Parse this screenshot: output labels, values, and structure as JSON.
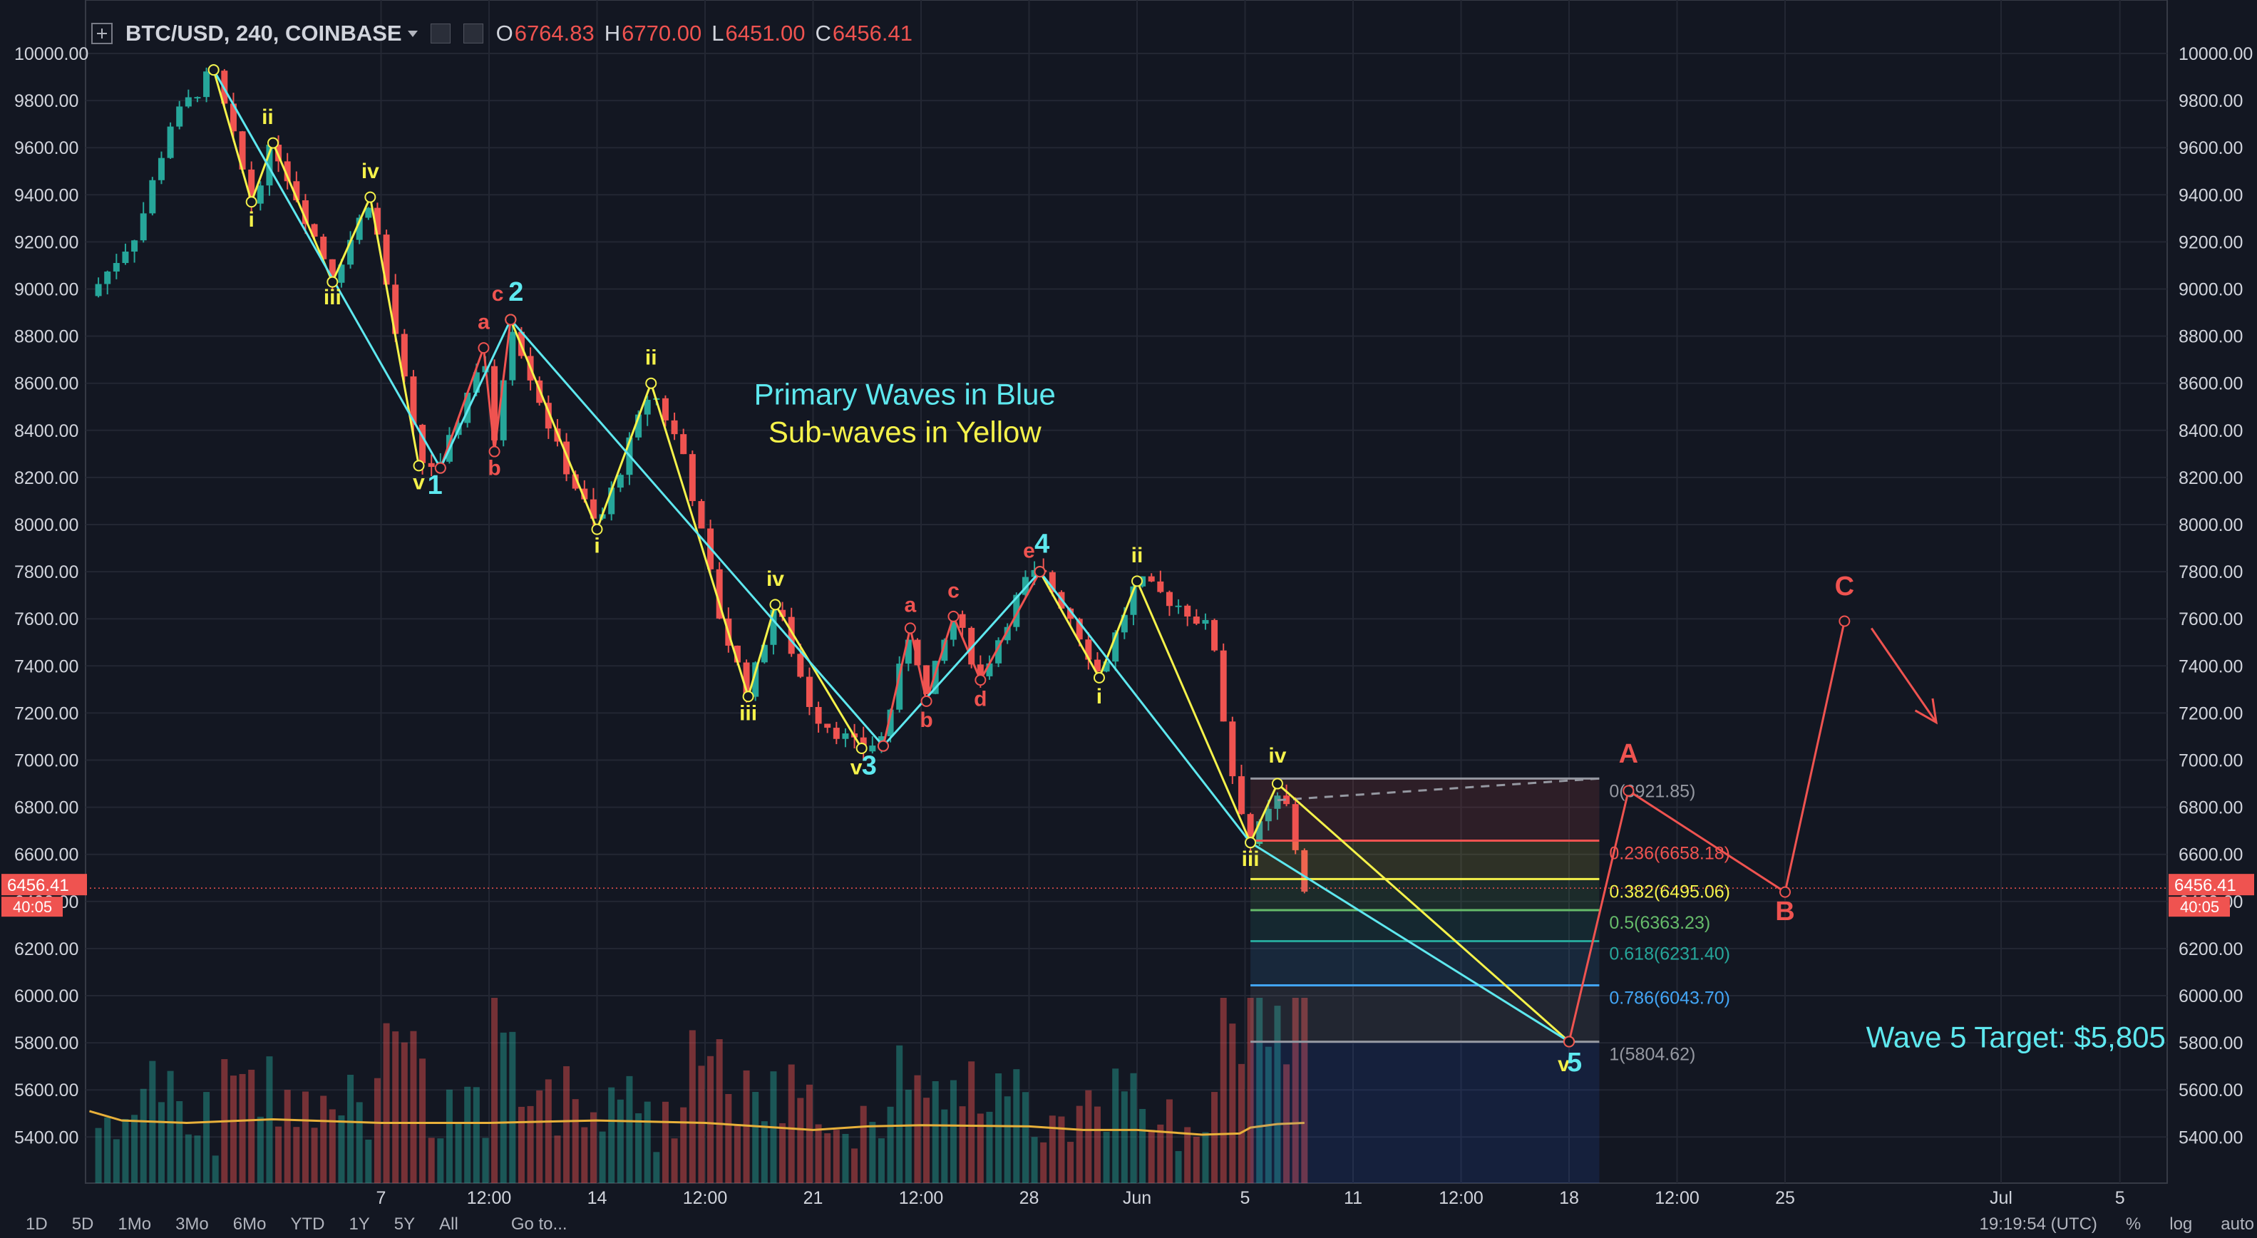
{
  "header": {
    "symbol": "BTC/USD, 240, COINBASE",
    "ohlc": [
      {
        "k": "O",
        "v": "6764.83"
      },
      {
        "k": "H",
        "v": "6770.00"
      },
      {
        "k": "L",
        "v": "6451.00"
      },
      {
        "k": "C",
        "v": "6456.41"
      }
    ]
  },
  "bottom": {
    "ranges": [
      "1D",
      "5D",
      "1Mo",
      "3Mo",
      "6Mo",
      "YTD",
      "1Y",
      "5Y",
      "All"
    ],
    "goto": "Go to...",
    "clock": "19:19:54 (UTC)",
    "percent": "%",
    "log": "log",
    "auto": "auto"
  },
  "colors": {
    "background": "#131722",
    "up": "#26a69a",
    "down": "#ef5350",
    "primary_wave": "#5ee8ef",
    "sub_wave": "#f5f24a",
    "corrective": "#ef5350",
    "ma": "#e8b03a"
  },
  "chart_data": {
    "type": "candlestick",
    "title": "BTC/USD, 240, COINBASE",
    "ylim": [
      5200,
      10200
    ],
    "y_ticks": [
      "10000.00",
      "9800.00",
      "9600.00",
      "9400.00",
      "9200.00",
      "9000.00",
      "8800.00",
      "8600.00",
      "8400.00",
      "8200.00",
      "8000.00",
      "7800.00",
      "7600.00",
      "7400.00",
      "7200.00",
      "7000.00",
      "6800.00",
      "6600.00",
      "6400.00",
      "6200.00",
      "6000.00",
      "5800.00",
      "5600.00",
      "5400.00"
    ],
    "x_ticks": [
      {
        "label": "7",
        "t": 1.0
      },
      {
        "label": "12:00",
        "t": 2.0
      },
      {
        "label": "14",
        "t": 3.0
      },
      {
        "label": "12:00",
        "t": 4.0
      },
      {
        "label": "21",
        "t": 5.0
      },
      {
        "label": "12:00",
        "t": 6.0
      },
      {
        "label": "28",
        "t": 7.0
      },
      {
        "label": "Jun",
        "t": 8.0
      },
      {
        "label": "5",
        "t": 9.0
      },
      {
        "label": "11",
        "t": 10.0
      },
      {
        "label": "12:00",
        "t": 11.0
      },
      {
        "label": "18",
        "t": 12.0
      },
      {
        "label": "12:00",
        "t": 13.0
      },
      {
        "label": "25",
        "t": 14.0
      },
      {
        "label": "Jul",
        "t": 16.0
      },
      {
        "label": "5",
        "t": 17.1
      }
    ],
    "last_price": "6456.41",
    "last_price_value": 6456.41,
    "countdown": "40:05",
    "price_path": [
      [
        -1.7,
        8970
      ],
      [
        -1.25,
        9250
      ],
      [
        -0.95,
        9700
      ],
      [
        -0.55,
        9930
      ],
      [
        -0.2,
        9370
      ],
      [
        0.0,
        9620
      ],
      [
        0.55,
        9050
      ],
      [
        0.9,
        9390
      ],
      [
        1.35,
        8270
      ],
      [
        1.55,
        8240
      ],
      [
        1.95,
        8750
      ],
      [
        2.05,
        8330
      ],
      [
        2.2,
        8870
      ],
      [
        2.65,
        8300
      ],
      [
        3.0,
        7980
      ],
      [
        3.5,
        8580
      ],
      [
        3.8,
        8300
      ],
      [
        4.15,
        7580
      ],
      [
        4.4,
        7280
      ],
      [
        4.65,
        7670
      ],
      [
        5.0,
        7200
      ],
      [
        5.45,
        7040
      ],
      [
        5.65,
        7100
      ],
      [
        5.9,
        7560
      ],
      [
        6.05,
        7270
      ],
      [
        6.3,
        7620
      ],
      [
        6.55,
        7350
      ],
      [
        6.95,
        7750
      ],
      [
        7.1,
        7800
      ],
      [
        7.4,
        7600
      ],
      [
        7.65,
        7360
      ],
      [
        8.0,
        7760
      ],
      [
        8.45,
        7640
      ],
      [
        8.7,
        7540
      ],
      [
        8.85,
        7000
      ],
      [
        9.05,
        6650
      ],
      [
        9.35,
        6870
      ],
      [
        9.55,
        6456
      ]
    ],
    "waves": {
      "primary": [
        [
          -0.55,
          9930
        ],
        [
          1.55,
          8240
        ],
        [
          2.2,
          8870
        ],
        [
          5.65,
          7060
        ],
        [
          7.1,
          7800
        ],
        [
          9.05,
          6650
        ],
        [
          12.0,
          5805
        ]
      ],
      "sub": [
        [
          [
            -0.55,
            9930
          ],
          [
            -0.2,
            9370
          ],
          [
            0.0,
            9620
          ],
          [
            0.55,
            9030
          ],
          [
            0.9,
            9390
          ],
          [
            1.35,
            8250
          ]
        ],
        [
          [
            2.2,
            8870
          ],
          [
            3.0,
            7980
          ],
          [
            3.5,
            8600
          ],
          [
            4.4,
            7270
          ],
          [
            4.65,
            7660
          ],
          [
            5.45,
            7050
          ]
        ],
        [
          [
            7.1,
            7800
          ],
          [
            7.65,
            7350
          ],
          [
            8.0,
            7760
          ],
          [
            9.05,
            6650
          ],
          [
            9.3,
            6900
          ],
          [
            12.0,
            5805
          ]
        ]
      ],
      "corrective": [
        [
          [
            1.55,
            8240
          ],
          [
            1.95,
            8750
          ],
          [
            2.05,
            8310
          ],
          [
            2.2,
            8870
          ]
        ],
        [
          [
            5.65,
            7060
          ],
          [
            5.9,
            7560
          ],
          [
            6.05,
            7250
          ],
          [
            6.3,
            7610
          ],
          [
            6.55,
            7340
          ],
          [
            7.1,
            7800
          ]
        ]
      ],
      "projection": [
        [
          12.0,
          5805
        ],
        [
          12.55,
          6870
        ],
        [
          14.0,
          6440
        ],
        [
          14.55,
          7590
        ]
      ],
      "projection_arrow": [
        [
          14.8,
          7560
        ],
        [
          15.4,
          7160
        ]
      ]
    },
    "wave_labels": [
      {
        "text": "ii",
        "t": -0.05,
        "p": 9700,
        "color": "sub"
      },
      {
        "text": "i",
        "t": -0.2,
        "p": 9265,
        "color": "sub"
      },
      {
        "text": "iv",
        "t": 0.9,
        "p": 9470,
        "color": "sub"
      },
      {
        "text": "iii",
        "t": 0.55,
        "p": 8935,
        "color": "sub"
      },
      {
        "text": "v",
        "t": 1.35,
        "p": 8150,
        "color": "sub"
      },
      {
        "text": "1",
        "t": 1.5,
        "p": 8130,
        "color": "primary"
      },
      {
        "text": "a",
        "t": 1.95,
        "p": 8830,
        "color": "corrective"
      },
      {
        "text": "b",
        "t": 2.05,
        "p": 8210,
        "color": "corrective"
      },
      {
        "text": "c",
        "t": 2.08,
        "p": 8950,
        "color": "corrective"
      },
      {
        "text": "2",
        "t": 2.25,
        "p": 8950,
        "color": "primary"
      },
      {
        "text": "i",
        "t": 3.0,
        "p": 7880,
        "color": "sub"
      },
      {
        "text": "ii",
        "t": 3.5,
        "p": 8680,
        "color": "sub"
      },
      {
        "text": "iii",
        "t": 4.4,
        "p": 7170,
        "color": "sub"
      },
      {
        "text": "iv",
        "t": 4.65,
        "p": 7740,
        "color": "sub"
      },
      {
        "text": "v",
        "t": 5.4,
        "p": 6940,
        "color": "sub"
      },
      {
        "text": "3",
        "t": 5.52,
        "p": 6940,
        "color": "primary"
      },
      {
        "text": "a",
        "t": 5.9,
        "p": 7630,
        "color": "corrective"
      },
      {
        "text": "b",
        "t": 6.05,
        "p": 7140,
        "color": "corrective"
      },
      {
        "text": "c",
        "t": 6.3,
        "p": 7690,
        "color": "corrective"
      },
      {
        "text": "d",
        "t": 6.55,
        "p": 7230,
        "color": "corrective"
      },
      {
        "text": "e",
        "t": 7.0,
        "p": 7860,
        "color": "corrective"
      },
      {
        "text": "4",
        "t": 7.12,
        "p": 7880,
        "color": "primary"
      },
      {
        "text": "i",
        "t": 7.65,
        "p": 7240,
        "color": "sub"
      },
      {
        "text": "ii",
        "t": 8.0,
        "p": 7840,
        "color": "sub"
      },
      {
        "text": "iii",
        "t": 9.05,
        "p": 6550,
        "color": "sub"
      },
      {
        "text": "iv",
        "t": 9.3,
        "p": 6990,
        "color": "sub"
      },
      {
        "text": "v",
        "t": 11.95,
        "p": 5680,
        "color": "sub"
      },
      {
        "text": "5",
        "t": 12.05,
        "p": 5680,
        "color": "primary"
      },
      {
        "text": "A",
        "t": 12.55,
        "p": 6990,
        "color": "corrective"
      },
      {
        "text": "B",
        "t": 14.0,
        "p": 6320,
        "color": "corrective"
      },
      {
        "text": "C",
        "t": 14.55,
        "p": 7700,
        "color": "corrective"
      }
    ],
    "annotations": [
      {
        "text": "Primary Waves in Blue",
        "t": 5.85,
        "p": 8510,
        "color": "primary"
      },
      {
        "text": "Sub-waves in Yellow",
        "t": 5.85,
        "p": 8350,
        "color": "sub"
      },
      {
        "text": "Wave 5 Target: $5,805",
        "t": 14.75,
        "p": 5780,
        "color": "primary"
      }
    ],
    "fibonacci": {
      "t_start": 9.05,
      "t_end": 12.28,
      "levels": [
        {
          "ratio": "0",
          "price": 6921.85,
          "label": "0(6921.85)",
          "color": "#9598a1"
        },
        {
          "ratio": "0.236",
          "price": 6658.18,
          "label": "0.236(6658.18)",
          "color": "#ef5350"
        },
        {
          "ratio": "0.382",
          "price": 6495.06,
          "label": "0.382(6495.06)",
          "color": "#f5f24a"
        },
        {
          "ratio": "0.5",
          "price": 6363.23,
          "label": "0.5(6363.23)",
          "color": "#66bb6a"
        },
        {
          "ratio": "0.618",
          "price": 6231.4,
          "label": "0.618(6231.40)",
          "color": "#26a69a"
        },
        {
          "ratio": "0.786",
          "price": 6043.7,
          "label": "0.786(6043.70)",
          "color": "#42a5f5"
        },
        {
          "ratio": "1",
          "price": 5804.62,
          "label": "1(5804.62)",
          "color": "#9598a1"
        }
      ]
    },
    "volume_ma": [
      [
        -1.7,
        5510
      ],
      [
        -1.4,
        5470
      ],
      [
        -0.8,
        5460
      ],
      [
        0.0,
        5475
      ],
      [
        1.0,
        5460
      ],
      [
        2.0,
        5460
      ],
      [
        3.0,
        5470
      ],
      [
        4.0,
        5460
      ],
      [
        5.0,
        5430
      ],
      [
        5.5,
        5445
      ],
      [
        6.0,
        5450
      ],
      [
        7.0,
        5445
      ],
      [
        7.5,
        5430
      ],
      [
        8.0,
        5430
      ],
      [
        8.6,
        5410
      ],
      [
        8.95,
        5415
      ],
      [
        9.05,
        5440
      ],
      [
        9.3,
        5455
      ],
      [
        9.55,
        5460
      ]
    ]
  }
}
